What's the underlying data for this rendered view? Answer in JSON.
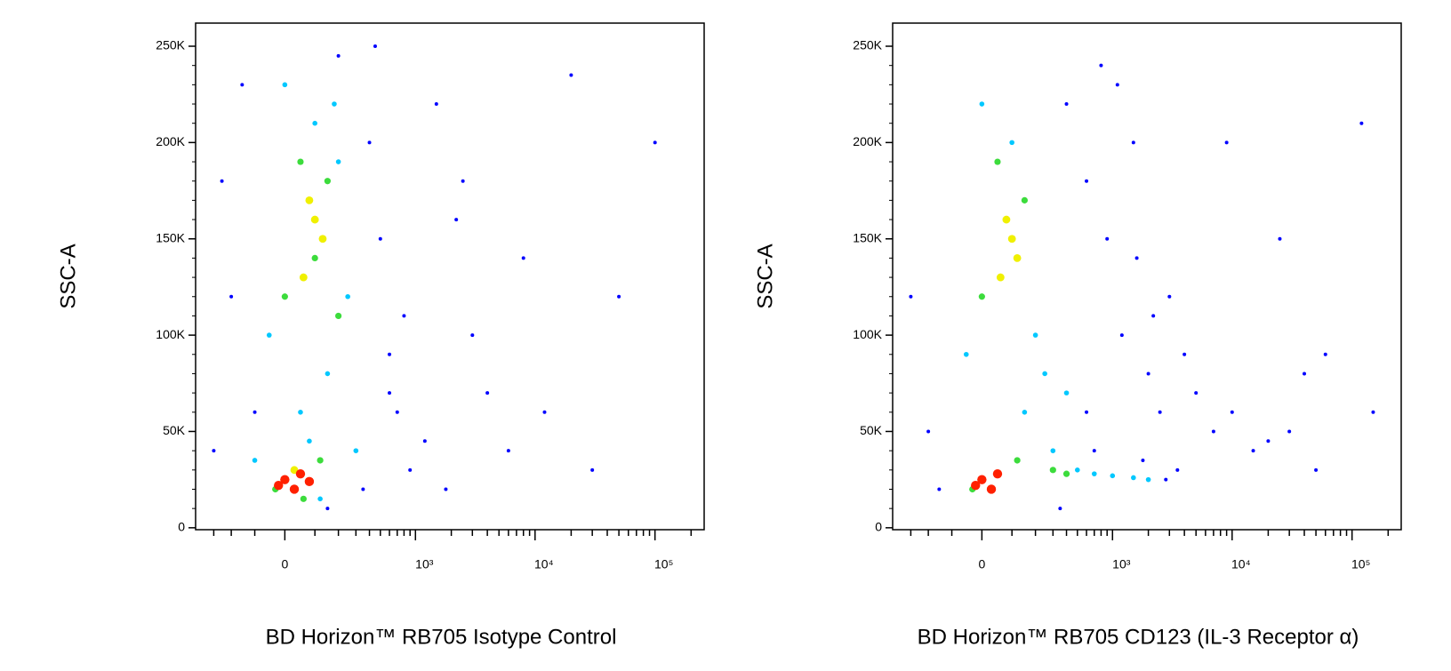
{
  "chart_data": [
    {
      "type": "scatter",
      "x_label": "BD Horizon™ RB705 Isotype Control",
      "y_label": "SSC-A",
      "xscale": "biexponential",
      "xlim": [
        -440,
        257000
      ],
      "ylim": [
        -1000,
        262000
      ],
      "xticks": [
        0,
        {
          "value": 1000,
          "label": "10³"
        },
        {
          "value": 10000,
          "label": "10⁴"
        },
        {
          "value": 100000,
          "label": "10⁵"
        }
      ],
      "xminorticks": [
        -300,
        -200,
        -100,
        100,
        200,
        300,
        400,
        500,
        600,
        700,
        800,
        900,
        2000,
        3000,
        4000,
        5000,
        6000,
        7000,
        8000,
        9000,
        20000,
        30000,
        40000,
        50000,
        60000,
        70000,
        80000,
        90000,
        200000
      ],
      "yticks": [
        0,
        {
          "value": 50000,
          "label": "50K"
        },
        {
          "value": 100000,
          "label": "100K"
        },
        {
          "value": 150000,
          "label": "150K"
        },
        {
          "value": 200000,
          "label": "200K"
        },
        {
          "value": 250000,
          "label": "250K"
        }
      ],
      "yminorticks": [
        10000,
        20000,
        30000,
        40000,
        60000,
        70000,
        80000,
        90000,
        110000,
        120000,
        130000,
        140000,
        160000,
        170000,
        180000,
        190000,
        210000,
        220000,
        230000,
        240000
      ],
      "series": [
        {
          "color": "#0000ff",
          "x": [
            -300,
            -200,
            -150,
            400,
            500,
            600,
            700,
            900,
            1500,
            2500,
            4000,
            6000,
            12000,
            20000,
            30000,
            50000,
            -250,
            350,
            800,
            1200,
            200,
            150,
            -100,
            450,
            3000,
            8000,
            100000,
            1800,
            2200,
            600
          ],
          "values": [
            40000,
            120000,
            230000,
            200000,
            150000,
            90000,
            60000,
            30000,
            220000,
            180000,
            70000,
            40000,
            60000,
            235000,
            30000,
            120000,
            180000,
            20000,
            110000,
            45000,
            245000,
            10000,
            60000,
            250000,
            100000,
            140000,
            200000,
            20000,
            160000,
            70000
          ]
        },
        {
          "color": "#00c8ff",
          "x": [
            0,
            100,
            200,
            -50,
            150,
            250,
            50,
            300,
            -100,
            120,
            180,
            80
          ],
          "values": [
            230000,
            210000,
            190000,
            100000,
            80000,
            120000,
            60000,
            40000,
            35000,
            15000,
            220000,
            45000
          ]
        },
        {
          "color": "#3cdc3c",
          "x": [
            50,
            150,
            0,
            100,
            200,
            120,
            -30,
            60
          ],
          "values": [
            190000,
            180000,
            120000,
            140000,
            110000,
            35000,
            20000,
            15000
          ]
        },
        {
          "color": "#f0f000",
          "x": [
            80,
            130,
            60,
            100,
            30
          ],
          "values": [
            170000,
            150000,
            130000,
            160000,
            30000
          ]
        },
        {
          "color": "#ff2000",
          "x": [
            0,
            50,
            -20,
            80,
            30
          ],
          "values": [
            25000,
            28000,
            22000,
            24000,
            20000
          ]
        }
      ]
    },
    {
      "type": "scatter",
      "x_label": "BD Horizon™ RB705 CD123 (IL-3 Receptor α)",
      "y_label": "SSC-A",
      "xscale": "biexponential",
      "xlim": [
        -440,
        257000
      ],
      "ylim": [
        -1000,
        262000
      ],
      "xticks": [
        0,
        {
          "value": 1000,
          "label": "10³"
        },
        {
          "value": 10000,
          "label": "10⁴"
        },
        {
          "value": 100000,
          "label": "10⁵"
        }
      ],
      "xminorticks": [
        -300,
        -200,
        -100,
        100,
        200,
        300,
        400,
        500,
        600,
        700,
        800,
        900,
        2000,
        3000,
        4000,
        5000,
        6000,
        7000,
        8000,
        9000,
        20000,
        30000,
        40000,
        50000,
        60000,
        70000,
        80000,
        90000,
        200000
      ],
      "yticks": [
        0,
        {
          "value": 50000,
          "label": "50K"
        },
        {
          "value": 100000,
          "label": "100K"
        },
        {
          "value": 150000,
          "label": "150K"
        },
        {
          "value": 200000,
          "label": "200K"
        },
        {
          "value": 250000,
          "label": "250K"
        }
      ],
      "yminorticks": [
        10000,
        20000,
        30000,
        40000,
        60000,
        70000,
        80000,
        90000,
        110000,
        120000,
        130000,
        140000,
        160000,
        170000,
        180000,
        190000,
        210000,
        220000,
        230000,
        240000
      ],
      "series": [
        {
          "color": "#0000ff",
          "x": [
            -300,
            -200,
            400,
            600,
            900,
            1200,
            1500,
            2000,
            2500,
            3000,
            4000,
            5000,
            7000,
            10000,
            15000,
            20000,
            30000,
            40000,
            50000,
            60000,
            800,
            1100,
            1600,
            2200,
            3500,
            600,
            700,
            9000,
            25000,
            120000,
            150000,
            -150,
            350,
            2800,
            1800
          ],
          "values": [
            120000,
            50000,
            220000,
            180000,
            150000,
            100000,
            200000,
            80000,
            60000,
            120000,
            90000,
            70000,
            50000,
            60000,
            40000,
            45000,
            50000,
            80000,
            30000,
            90000,
            240000,
            230000,
            140000,
            110000,
            30000,
            60000,
            40000,
            200000,
            150000,
            210000,
            60000,
            20000,
            10000,
            25000,
            35000
          ]
        },
        {
          "color": "#00c8ff",
          "x": [
            0,
            100,
            200,
            -50,
            150,
            300,
            500,
            700,
            1000,
            1500,
            2000,
            250,
            400
          ],
          "values": [
            220000,
            200000,
            100000,
            90000,
            60000,
            40000,
            30000,
            28000,
            27000,
            26000,
            25000,
            80000,
            70000
          ]
        },
        {
          "color": "#3cdc3c",
          "x": [
            50,
            150,
            0,
            120,
            300,
            400,
            -30
          ],
          "values": [
            190000,
            170000,
            120000,
            35000,
            30000,
            28000,
            20000
          ]
        },
        {
          "color": "#f0f000",
          "x": [
            80,
            120,
            60,
            100
          ],
          "values": [
            160000,
            140000,
            130000,
            150000
          ]
        },
        {
          "color": "#ff2000",
          "x": [
            0,
            50,
            -20,
            30
          ],
          "values": [
            25000,
            28000,
            22000,
            20000
          ]
        }
      ]
    }
  ]
}
